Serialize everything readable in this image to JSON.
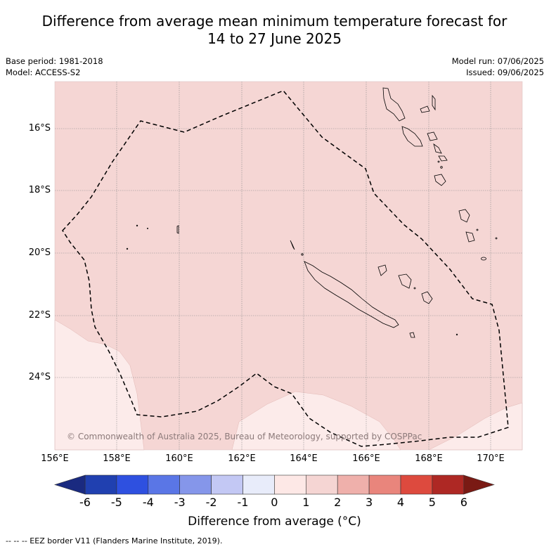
{
  "title": {
    "line1": "Difference from average mean minimum temperature forecast for",
    "line2": "14 to 27 June 2025"
  },
  "meta_left": {
    "base_period": "Base period: 1981-2018",
    "model": "Model: ACCESS-S2"
  },
  "meta_right": {
    "model_run": "Model run: 07/06/2025",
    "issued": "Issued: 09/06/2025"
  },
  "map": {
    "lat_labels": [
      "16°S",
      "18°S",
      "20°S",
      "22°S",
      "24°S"
    ],
    "lon_labels": [
      "156°E",
      "158°E",
      "160°E",
      "162°E",
      "164°E",
      "166°E",
      "168°E",
      "170°E"
    ],
    "copyright": "© Commonwealth of Australia 2025, Bureau of Meteorology, supported by COSPPac",
    "dominant_anomaly_category": "1 to 2",
    "secondary_anomaly_category": "0 to 1"
  },
  "colorbar": {
    "ticks": [
      "-6",
      "-5",
      "-4",
      "-3",
      "-2",
      "-1",
      "0",
      "1",
      "2",
      "3",
      "4",
      "5",
      "6"
    ],
    "colors": [
      "#2040b0",
      "#2e50e0",
      "#5a76e6",
      "#8596ea",
      "#c3c8f4",
      "#e8ecfa",
      "#fde8e6",
      "#f5d5d3",
      "#efb0ab",
      "#e9857c",
      "#dd4a3e",
      "#ae2824"
    ],
    "under_color": "#1a2a80",
    "over_color": "#7a1a14",
    "label": "Difference from average (°C)"
  },
  "footer": "-- -- -- EEZ border V11 (Flanders Marine Institute, 2019)."
}
